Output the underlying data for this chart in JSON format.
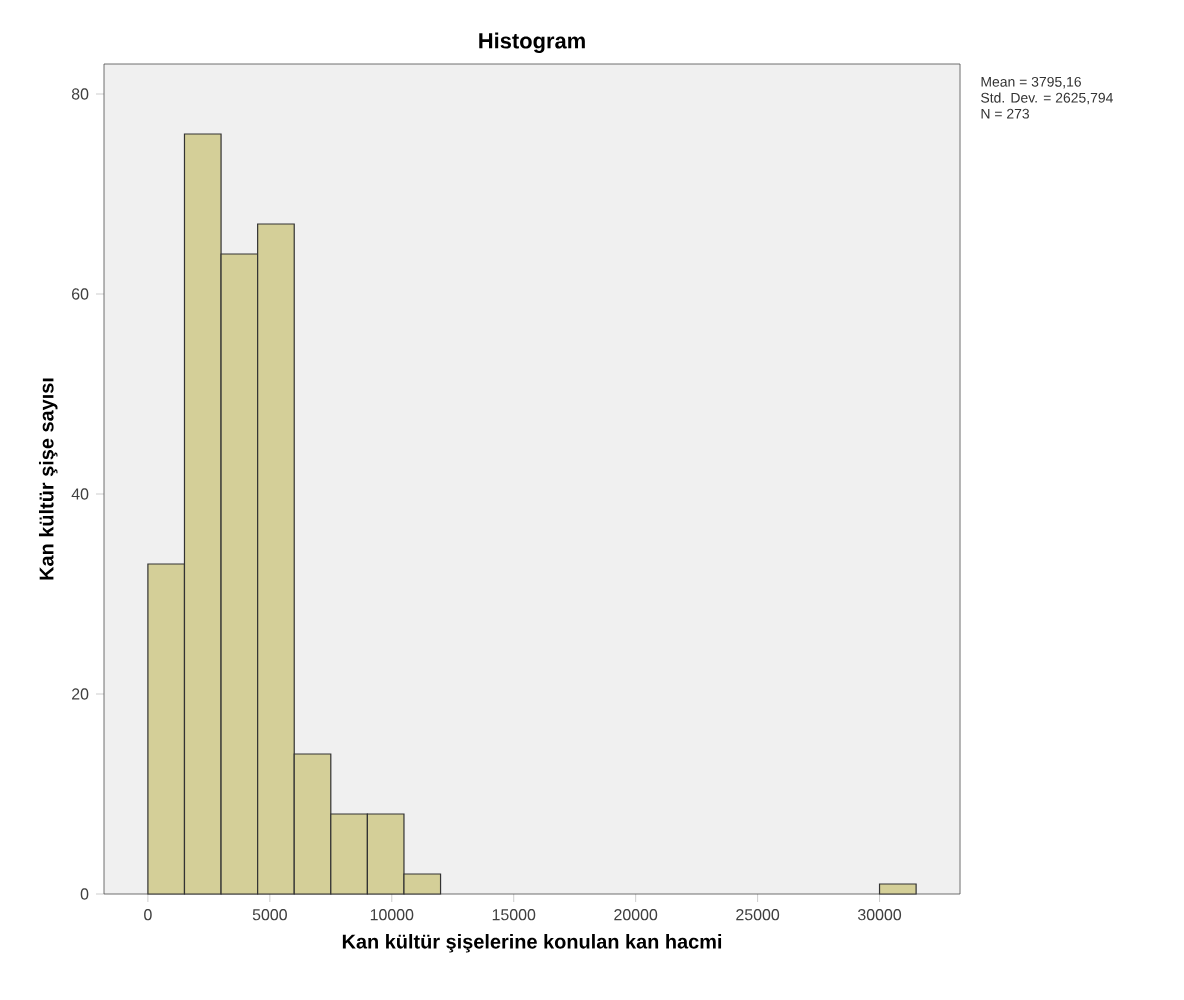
{
  "chart_data": {
    "type": "histogram",
    "title": "Histogram",
    "xlabel": "Kan kültür şişelerine konulan kan hacmi",
    "ylabel": "Kan kültür şişe sayısı",
    "bins": [
      0,
      1500,
      3000,
      4500,
      6000,
      7500,
      9000,
      10500,
      12000,
      13500,
      15000,
      16500,
      18000,
      19500,
      21000,
      22500,
      24000,
      25500,
      27000,
      28500,
      30000,
      31500
    ],
    "values": [
      33,
      76,
      64,
      67,
      14,
      8,
      8,
      2,
      0,
      0,
      0,
      0,
      0,
      0,
      0,
      0,
      0,
      0,
      0,
      0,
      1
    ],
    "color": "#d4cf98",
    "xlim": [
      -1800,
      33300
    ],
    "ylim": [
      0,
      83
    ],
    "xticks": [
      0,
      5000,
      10000,
      15000,
      20000,
      25000,
      30000
    ],
    "yticks": [
      0,
      20,
      40,
      60,
      80
    ],
    "grid": false,
    "annotations": [
      "Mean = 3795,16",
      "Std. Dev. = 2625,794",
      "N = 273"
    ]
  }
}
